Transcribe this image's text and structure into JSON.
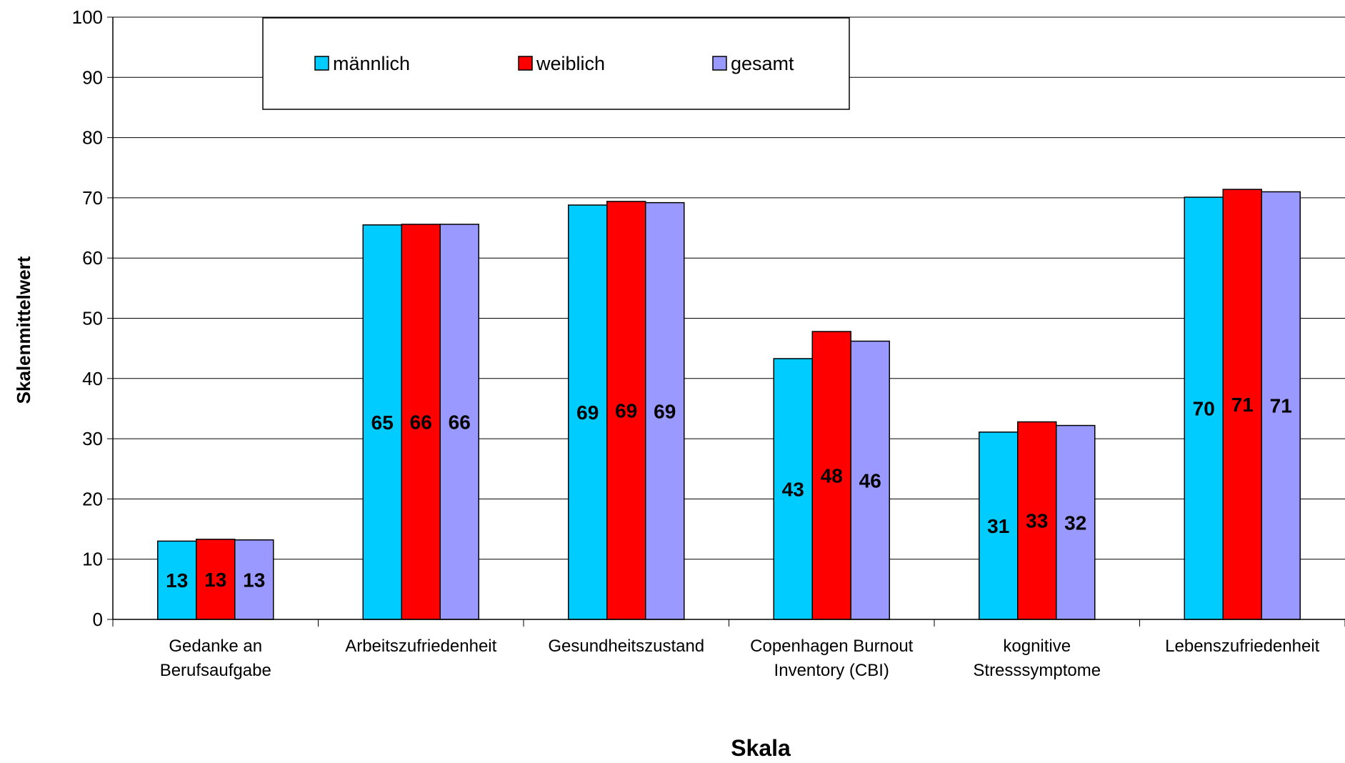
{
  "chart_data": {
    "type": "bar",
    "categories": [
      [
        "Gedanke an",
        "Berufsaufgabe"
      ],
      [
        "Arbeitszufriedenheit"
      ],
      [
        "Gesundheitszustand"
      ],
      [
        "Copenhagen Burnout",
        "Inventory (CBI)"
      ],
      [
        "kognitive",
        "Stresssymptome"
      ],
      [
        "Lebenszufriedenheit"
      ]
    ],
    "series": [
      {
        "name": "männlich",
        "color": "#00ccff",
        "values": [
          13.0,
          65.5,
          68.8,
          43.3,
          31.1,
          70.1
        ],
        "labels": [
          "13",
          "65",
          "69",
          "43",
          "31",
          "70"
        ]
      },
      {
        "name": "weiblich",
        "color": "#ff0000",
        "values": [
          13.3,
          65.6,
          69.4,
          47.8,
          32.8,
          71.4
        ],
        "labels": [
          "13",
          "66",
          "69",
          "48",
          "33",
          "71"
        ]
      },
      {
        "name": "gesamt",
        "color": "#9999ff",
        "values": [
          13.2,
          65.6,
          69.2,
          46.2,
          32.2,
          71.0
        ],
        "labels": [
          "13",
          "66",
          "69",
          "46",
          "32",
          "71"
        ]
      }
    ],
    "xlabel": "Skala",
    "ylabel": "Skalenmittelwert",
    "ylim": [
      0,
      100
    ],
    "yticks": [
      "0",
      "10",
      "20",
      "30",
      "40",
      "50",
      "60",
      "70",
      "80",
      "90",
      "100"
    ],
    "grid": true,
    "legend_position": "top"
  }
}
